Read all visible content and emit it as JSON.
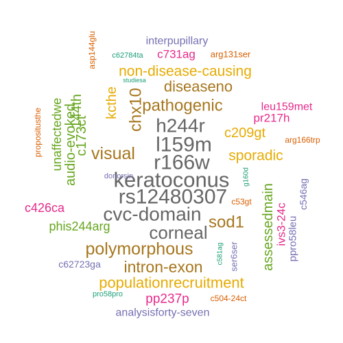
{
  "colors": {
    "teal": "#1b9e77",
    "orange": "#d95f02",
    "purple": "#7570b3",
    "magenta": "#e7298a",
    "green": "#66a61e",
    "gold": "#e6ab02",
    "brown": "#a6761d",
    "gray": "#666666"
  },
  "words": [
    {
      "text": "keratoconus",
      "color": "gray"
    },
    {
      "text": "rs12480307",
      "color": "gray"
    },
    {
      "text": "cvc-domain",
      "color": "gray"
    },
    {
      "text": "l159m",
      "color": "gray"
    },
    {
      "text": "r166w",
      "color": "gray"
    },
    {
      "text": "h244r",
      "color": "gray"
    },
    {
      "text": "corneal",
      "color": "gray"
    },
    {
      "text": "pathogenic",
      "color": "brown"
    },
    {
      "text": "polymorphous",
      "color": "brown"
    },
    {
      "text": "visual",
      "color": "brown"
    },
    {
      "text": "sod1",
      "color": "brown"
    },
    {
      "text": "intron-exon",
      "color": "brown"
    },
    {
      "text": "chx10",
      "color": "brown"
    },
    {
      "text": "diseaseno",
      "color": "brown"
    },
    {
      "text": "non-disease-causing",
      "color": "gold"
    },
    {
      "text": "populationrecruitment",
      "color": "gold"
    },
    {
      "text": "sporadic",
      "color": "gold"
    },
    {
      "text": "c209gt",
      "color": "gold"
    },
    {
      "text": "kcthe",
      "color": "gold"
    },
    {
      "text": "assessedmain",
      "color": "green"
    },
    {
      "text": "144th",
      "color": "green"
    },
    {
      "text": "c173ct",
      "color": "green"
    },
    {
      "text": "audio-evoked",
      "color": "green"
    },
    {
      "text": "unaffectedwe",
      "color": "green"
    },
    {
      "text": "phis244arg",
      "color": "green"
    },
    {
      "text": "pp237p",
      "color": "magenta"
    },
    {
      "text": "c731ag",
      "color": "magenta"
    },
    {
      "text": "c426ca",
      "color": "magenta"
    },
    {
      "text": "ivs3-24c",
      "color": "magenta"
    },
    {
      "text": "pr217h",
      "color": "magenta"
    },
    {
      "text": "leu159met",
      "color": "magenta"
    },
    {
      "text": "interpupillary",
      "color": "purple"
    },
    {
      "text": "analysisforty-seven",
      "color": "purple"
    },
    {
      "text": "c62723ga",
      "color": "purple"
    },
    {
      "text": "ppro58leu",
      "color": "purple"
    },
    {
      "text": "c546ag",
      "color": "purple"
    },
    {
      "text": "ser6ser",
      "color": "purple"
    },
    {
      "text": "donorsin",
      "color": "purple"
    },
    {
      "text": "arg131ser",
      "color": "orange"
    },
    {
      "text": "arg166trp",
      "color": "orange"
    },
    {
      "text": "c53gt",
      "color": "orange"
    },
    {
      "text": "c504-24ct",
      "color": "orange"
    },
    {
      "text": "asp144glu",
      "color": "orange"
    },
    {
      "text": "propositusthe",
      "color": "orange"
    },
    {
      "text": "c62784ta",
      "color": "teal"
    },
    {
      "text": "studiesa",
      "color": "teal"
    },
    {
      "text": "g160d",
      "color": "teal"
    },
    {
      "text": "c581ag",
      "color": "teal"
    },
    {
      "text": "pro58pro",
      "color": "teal"
    }
  ]
}
